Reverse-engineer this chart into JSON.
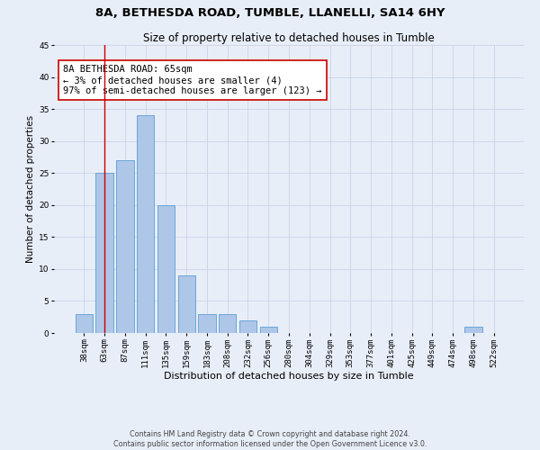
{
  "title": "8A, BETHESDA ROAD, TUMBLE, LLANELLI, SA14 6HY",
  "subtitle": "Size of property relative to detached houses in Tumble",
  "xlabel": "Distribution of detached houses by size in Tumble",
  "ylabel": "Number of detached properties",
  "categories": [
    "38sqm",
    "63sqm",
    "87sqm",
    "111sqm",
    "135sqm",
    "159sqm",
    "183sqm",
    "208sqm",
    "232sqm",
    "256sqm",
    "280sqm",
    "304sqm",
    "329sqm",
    "353sqm",
    "377sqm",
    "401sqm",
    "425sqm",
    "449sqm",
    "474sqm",
    "498sqm",
    "522sqm"
  ],
  "values": [
    3,
    25,
    27,
    34,
    20,
    9,
    3,
    3,
    2,
    1,
    0,
    0,
    0,
    0,
    0,
    0,
    0,
    0,
    0,
    1,
    0
  ],
  "bar_color": "#aec6e8",
  "bar_edge_color": "#5a9fd4",
  "vline_x": 1,
  "vline_color": "#cc0000",
  "annotation_text": "8A BETHESDA ROAD: 65sqm\n← 3% of detached houses are smaller (4)\n97% of semi-detached houses are larger (123) →",
  "annotation_box_color": "#ffffff",
  "annotation_box_edge": "#cc0000",
  "ylim": [
    0,
    45
  ],
  "yticks": [
    0,
    5,
    10,
    15,
    20,
    25,
    30,
    35,
    40,
    45
  ],
  "grid_color": "#c8d4e8",
  "bg_color": "#e8eef8",
  "footer": "Contains HM Land Registry data © Crown copyright and database right 2024.\nContains public sector information licensed under the Open Government Licence v3.0.",
  "title_fontsize": 9.5,
  "subtitle_fontsize": 8.5,
  "xlabel_fontsize": 8,
  "ylabel_fontsize": 7.5,
  "tick_fontsize": 6.5,
  "annotation_fontsize": 7.5,
  "footer_fontsize": 5.8
}
